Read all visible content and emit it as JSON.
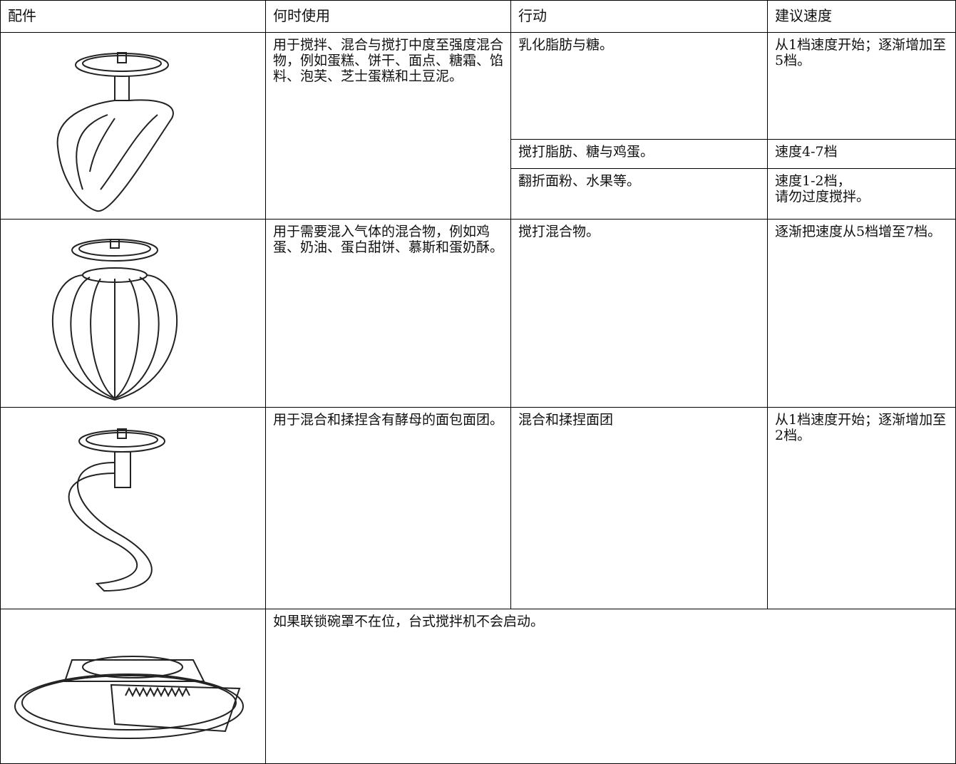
{
  "table": {
    "header": [
      "配件",
      "何时使用",
      "行动",
      "建议速度"
    ],
    "rows": [
      {
        "when": "用于搅拌、混合与搅打中度至强度混合物，例如蛋糕、饼干、面点、糖霜、馅料、泡芙、芝士蛋糕和土豆泥。",
        "actions": [
          {
            "action": "乳化脂肪与糖。",
            "speed": "从1档速度开始；逐渐增加至5档。"
          },
          {
            "action": "搅打脂肪、糖与鸡蛋。",
            "speed": "速度4-7档"
          },
          {
            "action": "翻折面粉、水果等。",
            "speed": "速度1-2档，\n请勿过度搅拌。"
          }
        ]
      },
      {
        "when": "用于需要混入气体的混合物，例如鸡蛋、奶油、蛋白甜饼、慕斯和蛋奶酥。",
        "actions": [
          {
            "action": "搅打混合物。",
            "speed": "逐渐把速度从5档增至7档。"
          }
        ]
      },
      {
        "when": "用于混合和揉捏含有酵母的面包面团。",
        "actions": [
          {
            "action": "混合和揉捏面团",
            "speed": "从1档速度开始；逐渐增加至2档。"
          }
        ]
      },
      {
        "note": "如果联锁碗罩不在位，台式搅拌机不会启动。"
      }
    ]
  }
}
